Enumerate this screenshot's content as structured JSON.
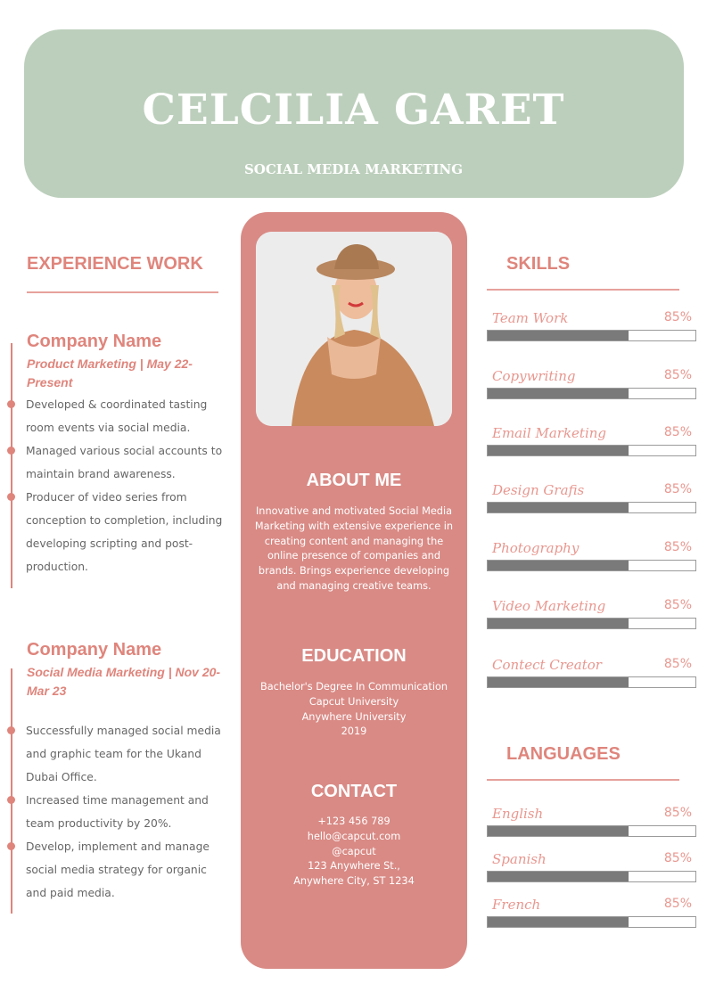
{
  "header": {
    "name": "CELCILIA GARET",
    "title": "SOCIAL MEDIA MARKETING"
  },
  "colors": {
    "header_bg": "#bccfbc",
    "accent": "#df857c",
    "panel": "#d98a85",
    "bar_fill": "#7a7a7a"
  },
  "experience": {
    "heading": "EXPERIENCE WORK",
    "jobs": [
      {
        "company": "Company Name",
        "subtitle": "Product Marketing | May 22-Present",
        "bullets": [
          "Developed & coordinated tasting room events via social media.",
          "Managed various social accounts to maintain brand awareness.",
          "Producer of video series from conception to completion, including developing scripting and post-production."
        ]
      },
      {
        "company": "Company Name",
        "subtitle": "Social Media Marketing | Nov 20-Mar 23",
        "bullets": [
          "Successfully managed social media and graphic team for the Ukand Dubai Office.",
          "Increased time management and team productivity by 20%.",
          "Develop, implement and manage social media strategy for organic and paid media."
        ]
      }
    ]
  },
  "photo": {
    "icon": "profile-photo-woman-in-hat"
  },
  "about": {
    "heading": "ABOUT ME",
    "text": "Innovative and motivated Social Media Marketing with extensive experience in creating content and managing the online presence of companies and brands. Brings experience developing and managing creative teams."
  },
  "education": {
    "heading": "EDUCATION",
    "lines": [
      "Bachelor's Degree In Communication",
      "Capcut University",
      "Anywhere University",
      "2019"
    ]
  },
  "contact": {
    "heading": "CONTACT",
    "lines": [
      "+123  456 789",
      "hello@capcut.com",
      "@capcut",
      "123 Anywhere St.,",
      "Anywhere City, ST 1234"
    ]
  },
  "skills": {
    "heading": "SKILLS",
    "items": [
      {
        "name": "Team Work",
        "percent": "85%",
        "fill": 0.68
      },
      {
        "name": "Copywriting",
        "percent": "85%",
        "fill": 0.68
      },
      {
        "name": "Email Marketing",
        "percent": "85%",
        "fill": 0.68
      },
      {
        "name": "Design Grafis",
        "percent": "85%",
        "fill": 0.68
      },
      {
        "name": "Photography",
        "percent": "85%",
        "fill": 0.68
      },
      {
        "name": "Video Marketing",
        "percent": "85%",
        "fill": 0.68
      },
      {
        "name": "Contect Creator",
        "percent": "85%",
        "fill": 0.68
      }
    ]
  },
  "languages": {
    "heading": "LANGUAGES",
    "items": [
      {
        "name": "English",
        "percent": "85%",
        "fill": 0.68
      },
      {
        "name": "Spanish",
        "percent": "85%",
        "fill": 0.68
      },
      {
        "name": "French",
        "percent": "85%",
        "fill": 0.68
      }
    ]
  }
}
